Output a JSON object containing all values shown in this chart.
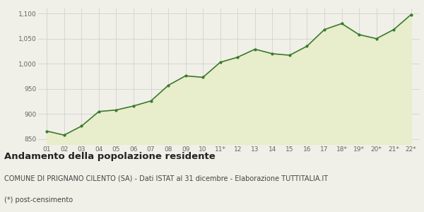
{
  "x_labels": [
    "01",
    "02",
    "03",
    "04",
    "05",
    "06",
    "07",
    "08",
    "09",
    "10",
    "11*",
    "12",
    "13",
    "14",
    "15",
    "16",
    "17",
    "18*",
    "19*",
    "20*",
    "21*",
    "22*"
  ],
  "y_values": [
    866,
    858,
    876,
    905,
    908,
    916,
    926,
    957,
    976,
    973,
    1003,
    1013,
    1029,
    1020,
    1017,
    1035,
    1068,
    1080,
    1058,
    1050,
    1068,
    1098
  ],
  "line_color": "#3a7a2a",
  "fill_color": "#e8edcc",
  "marker_color": "#3a7a2a",
  "bg_color": "#f0f0e8",
  "grid_color": "#cccccc",
  "ylim": [
    840,
    1110
  ],
  "yticks": [
    850,
    900,
    950,
    1000,
    1050,
    1100
  ],
  "ytick_labels": [
    "850",
    "900",
    "950",
    "1,000",
    "1,050",
    "1,100"
  ],
  "title": "Andamento della popolazione residente",
  "subtitle": "COMUNE DI PRIGNANO CILENTO (SA) - Dati ISTAT al 31 dicembre - Elaborazione TUTTITALIA.IT",
  "footnote": "(*) post-censimento",
  "title_fontsize": 9.5,
  "subtitle_fontsize": 7,
  "footnote_fontsize": 7
}
